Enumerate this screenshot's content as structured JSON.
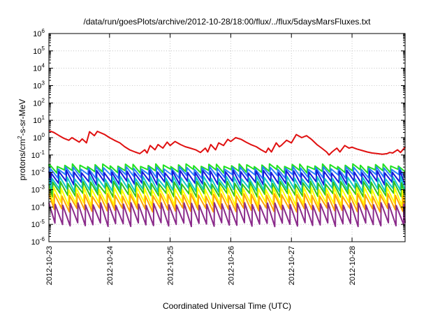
{
  "chart_data": {
    "type": "line",
    "title": "/data/run/goesPlots/archive/2012-10-28/18:00/flux/../flux/5daysMarsFluxes.txt",
    "xlabel": "Coordinated Universal Time (UTC)",
    "ylabel": {
      "base": "protons/cm",
      "exp": "2",
      "rest": "-s-sr-MeV"
    },
    "x_range": [
      "2012-10-23",
      "2012-10-28T21:00"
    ],
    "x_ticks": [
      "2012-10-23",
      "2012-10-24",
      "2012-10-25",
      "2012-10-26",
      "2012-10-27",
      "2012-10-28"
    ],
    "y_scale": "log",
    "y_range": [
      1e-06,
      1000000.0
    ],
    "y_ticks": [
      {
        "value": 1e-06,
        "base": "10",
        "exp": "-6"
      },
      {
        "value": 1e-05,
        "base": "10",
        "exp": "-5"
      },
      {
        "value": 0.0001,
        "base": "10",
        "exp": "-4"
      },
      {
        "value": 0.001,
        "base": "10",
        "exp": "-3"
      },
      {
        "value": 0.01,
        "base": "10",
        "exp": "-2"
      },
      {
        "value": 0.1,
        "base": "10",
        "exp": "-1"
      },
      {
        "value": 1.0,
        "base": "10",
        "exp": "0"
      },
      {
        "value": 10.0,
        "base": "10",
        "exp": "1"
      },
      {
        "value": 100.0,
        "base": "10",
        "exp": "2"
      },
      {
        "value": 1000.0,
        "base": "10",
        "exp": "3"
      },
      {
        "value": 10000.0,
        "base": "10",
        "exp": "4"
      },
      {
        "value": 100000.0,
        "base": "10",
        "exp": "5"
      },
      {
        "value": 1000000.0,
        "base": "10",
        "exp": "6"
      }
    ],
    "grid": true,
    "series": [
      {
        "color": "#e01010",
        "x": [
          0.0,
          0.08,
          0.17,
          0.25,
          0.33,
          0.38,
          0.5,
          0.55,
          0.62,
          0.67,
          0.75,
          0.8,
          0.92,
          1.0,
          1.08,
          1.17,
          1.25,
          1.33,
          1.42,
          1.5,
          1.58,
          1.62,
          1.67,
          1.75,
          1.8,
          1.88,
          1.95,
          2.0,
          2.08,
          2.17,
          2.25,
          2.33,
          2.42,
          2.5,
          2.58,
          2.62,
          2.67,
          2.75,
          2.8,
          2.88,
          2.95,
          3.0,
          3.08,
          3.17,
          3.25,
          3.33,
          3.42,
          3.5,
          3.58,
          3.62,
          3.67,
          3.75,
          3.8,
          3.83,
          3.92,
          4.0,
          4.08,
          4.17,
          4.25,
          4.33,
          4.42,
          4.5,
          4.58,
          4.62,
          4.67,
          4.75,
          4.8,
          4.88,
          4.95,
          5.0,
          5.08,
          5.17,
          5.25,
          5.33,
          5.42,
          5.5,
          5.58,
          5.62,
          5.67,
          5.75,
          5.8,
          5.88
        ],
        "y": [
          2.5,
          2.0,
          1.3,
          0.9,
          0.7,
          1.0,
          0.55,
          0.85,
          0.5,
          2.2,
          1.3,
          2.3,
          1.5,
          1.0,
          0.7,
          0.5,
          0.3,
          0.2,
          0.15,
          0.12,
          0.2,
          0.13,
          0.35,
          0.2,
          0.4,
          0.25,
          0.55,
          0.35,
          0.6,
          0.4,
          0.3,
          0.25,
          0.2,
          0.14,
          0.25,
          0.15,
          0.4,
          0.2,
          0.5,
          0.35,
          0.8,
          0.6,
          1.0,
          0.8,
          0.55,
          0.4,
          0.3,
          0.2,
          0.14,
          0.25,
          0.15,
          0.5,
          0.3,
          0.35,
          0.7,
          0.5,
          1.5,
          1.0,
          1.3,
          0.8,
          0.4,
          0.25,
          0.15,
          0.1,
          0.15,
          0.25,
          0.15,
          0.35,
          0.25,
          0.28,
          0.22,
          0.18,
          0.15,
          0.13,
          0.12,
          0.11,
          0.12,
          0.14,
          0.13,
          0.2,
          0.14,
          0.3
        ]
      },
      {
        "color": "#20e020",
        "y_min": 0.012,
        "y_max": 0.026
      },
      {
        "color": "#2a7fff",
        "y_min": 0.006,
        "y_max": 0.018
      },
      {
        "color": "#1818d8",
        "y_min": 0.0025,
        "y_max": 0.011
      },
      {
        "color": "#10c8c8",
        "y_min": 0.001,
        "y_max": 0.005
      },
      {
        "color": "#30c020",
        "y_min": 0.0005,
        "y_max": 0.0025
      },
      {
        "color": "#ffff00",
        "y_min": 0.00015,
        "y_max": 0.0012
      },
      {
        "color": "#ffa500",
        "y_min": 7e-05,
        "y_max": 0.0005
      },
      {
        "color": "#8a2a8a",
        "y_min": 1e-05,
        "y_max": 0.00015
      }
    ],
    "cycle_period_days": 0.125
  }
}
